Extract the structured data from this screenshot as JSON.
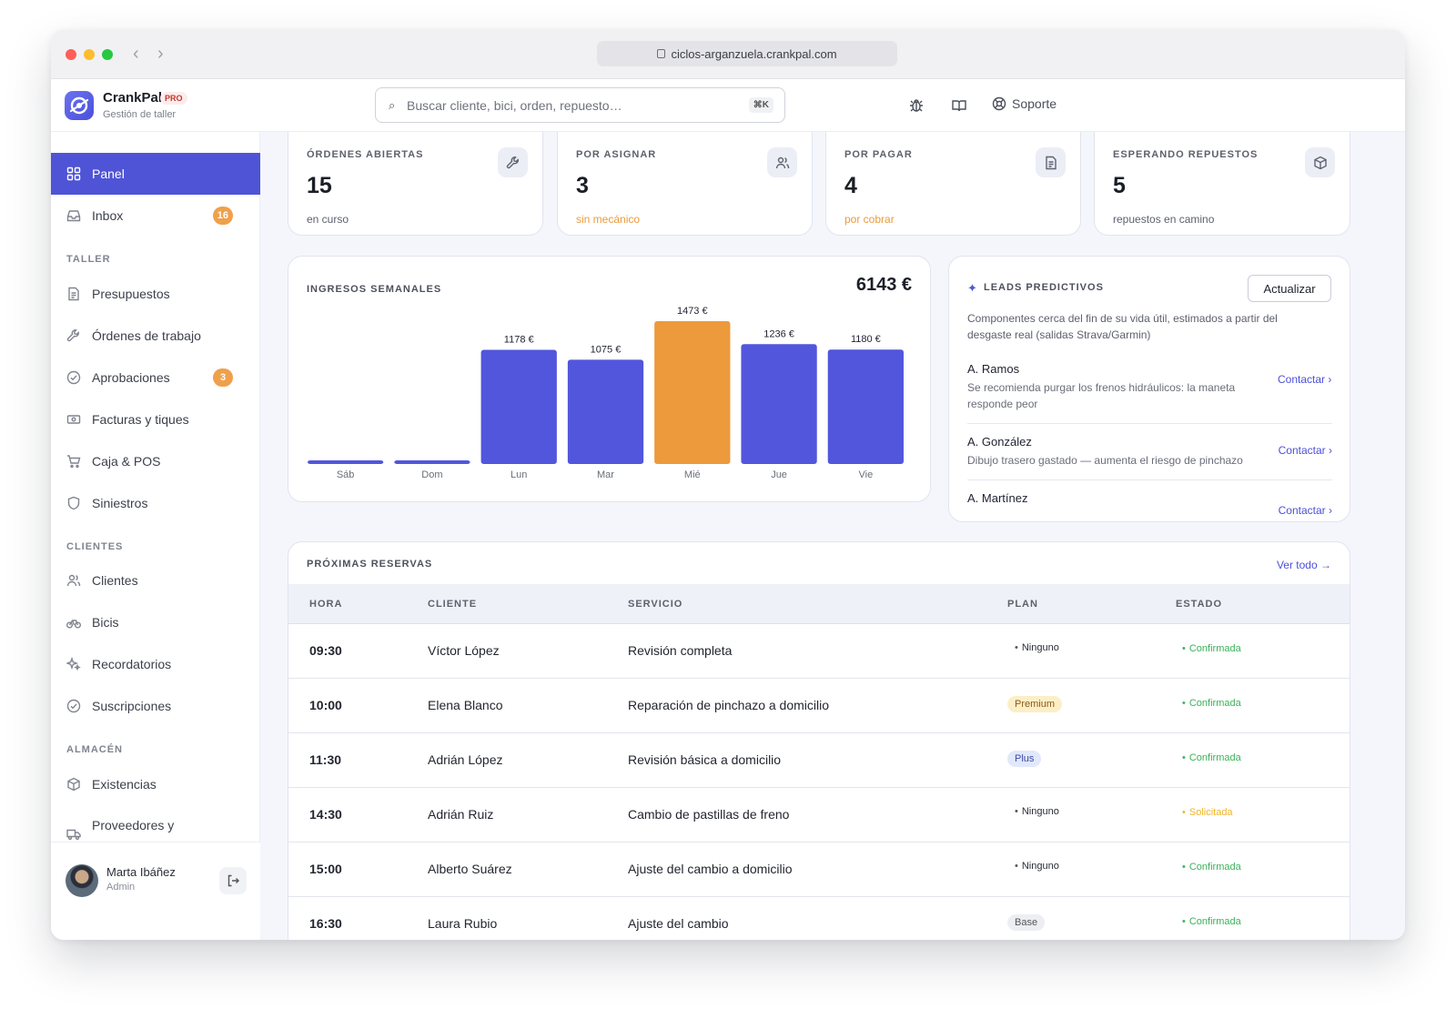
{
  "browser": {
    "url": "ciclos-arganzuela.crankpal.com"
  },
  "app": {
    "name": "CrankPal",
    "badge": "PRO",
    "subtitle": "Gestión de taller"
  },
  "search": {
    "placeholder": "Buscar cliente, bici, orden, repuesto…",
    "shortcut": "⌘K"
  },
  "header": {
    "support_label": "Soporte"
  },
  "sidebar": {
    "items": [
      {
        "label": "Panel",
        "icon": "grid-icon",
        "active": true
      },
      {
        "label": "Inbox",
        "icon": "inbox-icon",
        "badge": "16"
      }
    ],
    "sections": [
      {
        "title": "TALLER",
        "items": [
          {
            "label": "Presupuestos",
            "icon": "document-icon"
          },
          {
            "label": "Órdenes de trabajo",
            "icon": "wrench-icon"
          },
          {
            "label": "Aprobaciones",
            "icon": "check-circle-icon",
            "badge": "3"
          },
          {
            "label": "Facturas y tiques",
            "icon": "banknote-icon"
          },
          {
            "label": "Caja & POS",
            "icon": "cart-icon"
          },
          {
            "label": "Siniestros",
            "icon": "shield-icon"
          }
        ]
      },
      {
        "title": "CLIENTES",
        "items": [
          {
            "label": "Clientes",
            "icon": "users-icon"
          },
          {
            "label": "Bicis",
            "icon": "bike-icon"
          },
          {
            "label": "Recordatorios",
            "icon": "sparkle-icon"
          },
          {
            "label": "Suscripciones",
            "icon": "check-circle-icon"
          }
        ]
      },
      {
        "title": "ALMACÉN",
        "items": [
          {
            "label": "Existencias",
            "icon": "box-icon"
          },
          {
            "label": "Proveedores y",
            "icon": "truck-icon"
          }
        ]
      }
    ],
    "user": {
      "name": "Marta Ibáñez",
      "role": "Admin"
    }
  },
  "stats": [
    {
      "label": "ÓRDENES ABIERTAS",
      "value": "15",
      "sub": "en curso",
      "icon": "wrench-icon",
      "warn": false
    },
    {
      "label": "POR ASIGNAR",
      "value": "3",
      "sub": "sin mecánico",
      "icon": "users-icon",
      "warn": true
    },
    {
      "label": "POR PAGAR",
      "value": "4",
      "sub": "por cobrar",
      "icon": "document-icon",
      "warn": true
    },
    {
      "label": "ESPERANDO REPUESTOS",
      "value": "5",
      "sub": "repuestos en camino",
      "icon": "box-icon",
      "warn": false
    }
  ],
  "revenue": {
    "title": "INGRESOS SEMANALES",
    "total": "6143 €"
  },
  "chart_data": {
    "type": "bar",
    "categories": [
      "Sáb",
      "Dom",
      "Lun",
      "Mar",
      "Mié",
      "Jue",
      "Vie"
    ],
    "values": [
      0,
      0,
      1178,
      1075,
      1473,
      1236,
      1180
    ],
    "data_labels": [
      "",
      "",
      "1178 €",
      "1075 €",
      "1473 €",
      "1236 €",
      "1180 €"
    ],
    "highlight_index": 4,
    "colors": {
      "bar": "#5156dc",
      "highlight": "#ec9a3c"
    },
    "ylim": [
      0,
      1473
    ],
    "grid": false
  },
  "leads": {
    "title": "LEADS PREDICTIVOS",
    "button": "Actualizar",
    "description": "Componentes cerca del fin de su vida útil, estimados a partir del desgaste real (salidas Strava/Garmin)",
    "items": [
      {
        "name": "A. Ramos",
        "text": "Se recomienda purgar los frenos hidráulicos: la maneta responde peor",
        "action": "Contactar ›"
      },
      {
        "name": "A. González",
        "text": "Dibujo trasero gastado — aumenta el riesgo de pinchazo",
        "action": "Contactar ›"
      },
      {
        "name": "A. Martínez",
        "text": "",
        "action": "Contactar ›"
      }
    ]
  },
  "reservations": {
    "title": "PRÓXIMAS RESERVAS",
    "view_all": "Ver todo →",
    "columns": [
      "HORA",
      "CLIENTE",
      "SERVICIO",
      "PLAN",
      "ESTADO"
    ],
    "rows": [
      {
        "hora": "09:30",
        "cliente": "Víctor López",
        "servicio": "Revisión completa",
        "plan": "Ninguno",
        "estado": "Confirmada"
      },
      {
        "hora": "10:00",
        "cliente": "Elena Blanco",
        "servicio": "Reparación de pinchazo a domicilio",
        "plan": "Premium",
        "estado": "Confirmada"
      },
      {
        "hora": "11:30",
        "cliente": "Adrián López",
        "servicio": "Revisión básica a domicilio",
        "plan": "Plus",
        "estado": "Confirmada"
      },
      {
        "hora": "14:30",
        "cliente": "Adrián Ruiz",
        "servicio": "Cambio de pastillas de freno",
        "plan": "Ninguno",
        "estado": "Solicitada"
      },
      {
        "hora": "15:00",
        "cliente": "Alberto Suárez",
        "servicio": "Ajuste del cambio a domicilio",
        "plan": "Ninguno",
        "estado": "Confirmada"
      },
      {
        "hora": "16:30",
        "cliente": "Laura Rubio",
        "servicio": "Ajuste del cambio",
        "plan": "Base",
        "estado": "Confirmada"
      }
    ]
  }
}
